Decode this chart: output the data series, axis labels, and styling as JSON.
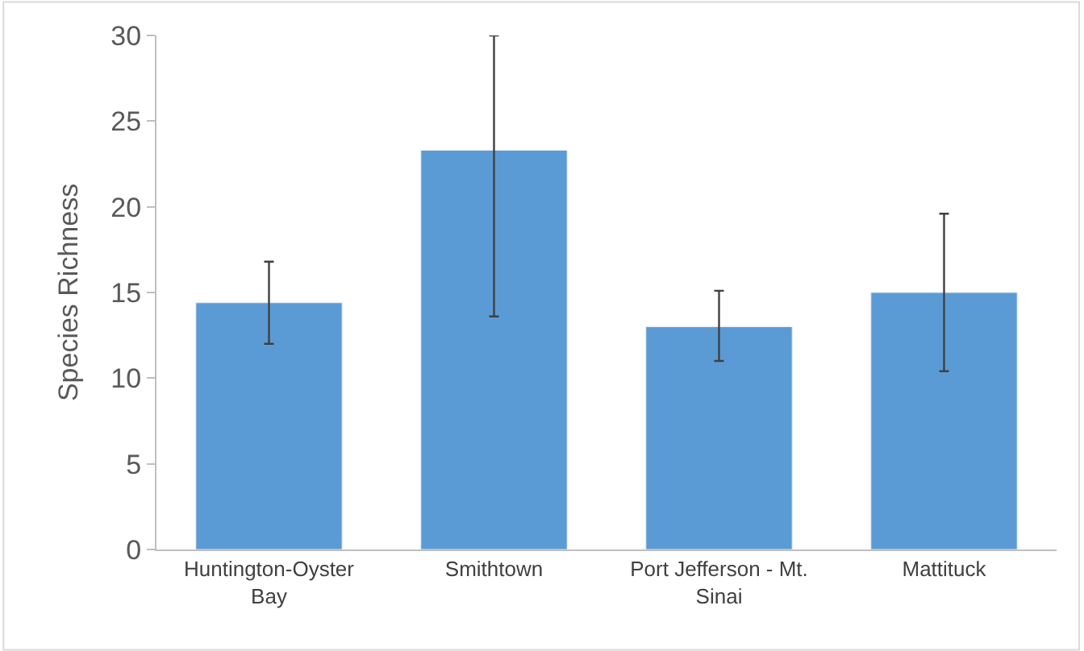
{
  "chart_data": {
    "type": "bar",
    "ylabel": "Species Richness",
    "categories": [
      "Huntington-Oyster Bay",
      "Smithtown",
      "Port Jefferson - Mt. Sinai",
      "Mattituck"
    ],
    "values": [
      14.4,
      23.3,
      13.0,
      15.0
    ],
    "errors": [
      [
        12.0,
        16.8
      ],
      [
        13.6,
        30
      ],
      [
        11.0,
        15.1
      ],
      [
        10.4,
        19.6
      ]
    ],
    "color": "#5b9bd5",
    "ylim": [
      0,
      30
    ],
    "yticks": [
      0,
      5,
      10,
      15,
      20,
      25,
      30
    ]
  }
}
